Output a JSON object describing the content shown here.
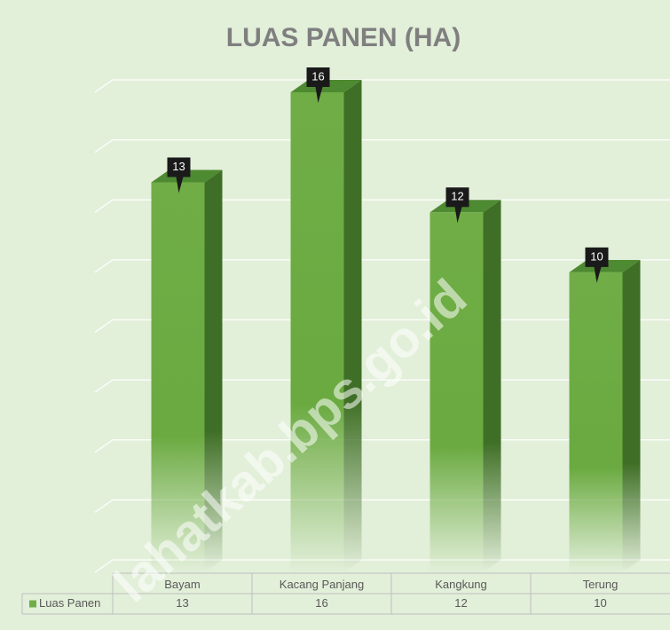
{
  "chart_data": {
    "type": "bar",
    "title": "LUAS PANEN (HA)",
    "categories": [
      "Bayam",
      "Kacang Panjang",
      "Kangkung",
      "Terung"
    ],
    "series": [
      {
        "name": "Luas Panen",
        "color": "#70ad47",
        "values": [
          13,
          16,
          12,
          10
        ]
      }
    ],
    "ylim": [
      0,
      16
    ],
    "yticks": [
      0,
      2,
      4,
      6,
      8,
      10,
      12,
      14,
      16
    ],
    "grid": true,
    "watermark": "lahatkab.bps.go.id"
  }
}
